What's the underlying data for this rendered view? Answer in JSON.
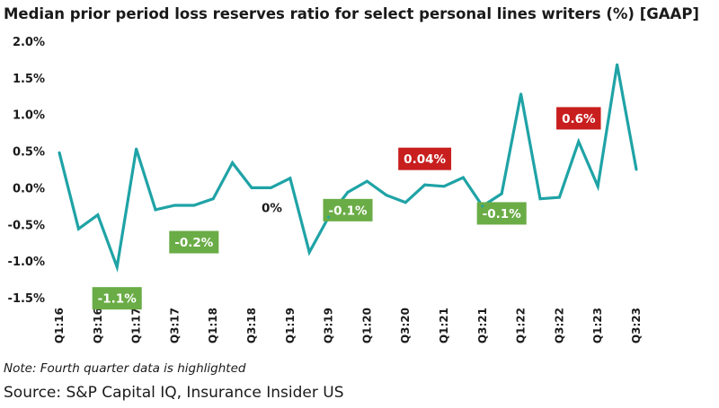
{
  "chart_data": {
    "type": "line",
    "title": "Median prior period loss reserves ratio for select personal lines writers (%) [GAAP]",
    "xlabel": "",
    "ylabel": "",
    "x": [
      "Q1:16",
      "Q2:16",
      "Q3:16",
      "Q4:16",
      "Q1:17",
      "Q2:17",
      "Q3:17",
      "Q4:17",
      "Q1:18",
      "Q2:18",
      "Q3:18",
      "Q4:18",
      "Q1:19",
      "Q2:19",
      "Q3:19",
      "Q4:19",
      "Q1:20",
      "Q2:20",
      "Q3:20",
      "Q4:20",
      "Q1:21",
      "Q2:21",
      "Q3:21",
      "Q4:21",
      "Q1:22",
      "Q2:22",
      "Q3:22",
      "Q4:22",
      "Q1:23",
      "Q2:23",
      "Q3:23"
    ],
    "x_tick_labels": [
      "Q1:16",
      "Q3:16",
      "Q1:17",
      "Q3:17",
      "Q1:18",
      "Q3:18",
      "Q1:19",
      "Q3:19",
      "Q1:20",
      "Q3:20",
      "Q1:21",
      "Q3:21",
      "Q1:22",
      "Q3:22",
      "Q1:23",
      "Q3:23"
    ],
    "values": [
      0.48,
      -0.56,
      -0.37,
      -1.08,
      0.53,
      -0.3,
      -0.24,
      -0.24,
      -0.15,
      0.34,
      0.0,
      0.0,
      0.13,
      -0.88,
      -0.4,
      -0.06,
      0.09,
      -0.1,
      -0.2,
      0.04,
      0.02,
      0.14,
      -0.25,
      -0.08,
      1.28,
      -0.15,
      -0.13,
      0.63,
      0.02,
      1.68,
      0.25
    ],
    "ylim": [
      -1.5,
      2.0
    ],
    "y_tick_labels": [
      "2.0%",
      "1.5%",
      "1.0%",
      "0.5%",
      "0.0%",
      "-0.5%",
      "-1.0%",
      "-1.5%"
    ],
    "grid": false,
    "line_color": "#1fa3a6",
    "annotations": [
      {
        "quarter": "Q4:16",
        "text": "-1.1%",
        "background": "#6aac46",
        "color": "#ffffff"
      },
      {
        "quarter": "Q4:17",
        "text": "-0.2%",
        "background": "#6aac46",
        "color": "#ffffff"
      },
      {
        "quarter": "Q4:18",
        "text": "0%",
        "background": "",
        "color": "#1a1a1a"
      },
      {
        "quarter": "Q4:19",
        "text": "-0.1%",
        "background": "#6aac46",
        "color": "#ffffff"
      },
      {
        "quarter": "Q4:20",
        "text": "0.04%",
        "background": "#c81e1e",
        "color": "#ffffff"
      },
      {
        "quarter": "Q4:21",
        "text": "-0.1%",
        "background": "#6aac46",
        "color": "#ffffff"
      },
      {
        "quarter": "Q4:22",
        "text": "0.6%",
        "background": "#c81e1e",
        "color": "#ffffff"
      }
    ]
  },
  "note": "Note: Fourth quarter data is highlighted",
  "source": "Source: S&P Capital IQ, Insurance Insider US"
}
